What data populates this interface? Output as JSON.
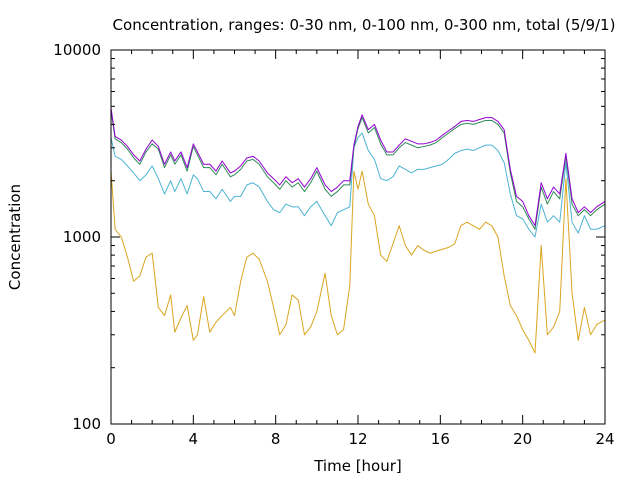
{
  "chart_data": {
    "type": "line",
    "title": "Concentration, ranges: 0-30 nm, 0-100 nm, 0-300 nm, total (5/9/1)",
    "xlabel": "Time [hour]",
    "ylabel": "Concentration",
    "xlim": [
      0,
      24
    ],
    "ylim": [
      100,
      10000
    ],
    "y_scale": "log",
    "x_ticks": [
      "0",
      "4",
      "8",
      "12",
      "16",
      "20",
      "24"
    ],
    "y_ticks": [
      "100",
      "1000",
      "10000"
    ],
    "grid": false,
    "legend": "none",
    "series": [
      {
        "color": "#daa520",
        "x": [
          0,
          0.2,
          0.5,
          0.8,
          1.1,
          1.4,
          1.7,
          2.0,
          2.3,
          2.6,
          2.9,
          3.1,
          3.4,
          3.7,
          4.0,
          4.2,
          4.5,
          4.8,
          5.1,
          5.4,
          5.8,
          6.0,
          6.3,
          6.6,
          6.9,
          7.2,
          7.6,
          7.9,
          8.2,
          8.5,
          8.8,
          9.1,
          9.4,
          9.7,
          10.0,
          10.4,
          10.7,
          11.0,
          11.3,
          11.6,
          11.8,
          12.0,
          12.2,
          12.5,
          12.8,
          13.1,
          13.4,
          13.7,
          14.0,
          14.3,
          14.6,
          14.9,
          15.2,
          15.5,
          15.8,
          16.1,
          16.4,
          16.7,
          17.0,
          17.3,
          17.6,
          17.9,
          18.2,
          18.5,
          18.8,
          19.1,
          19.4,
          19.7,
          20.0,
          20.3,
          20.6,
          20.9,
          21.2,
          21.5,
          21.8,
          22.1,
          22.4,
          22.7,
          23.0,
          23.3,
          23.6,
          24.0
        ],
        "y": [
          2250,
          1100,
          1000,
          780,
          580,
          620,
          780,
          820,
          420,
          380,
          490,
          310,
          370,
          430,
          280,
          300,
          480,
          310,
          350,
          380,
          420,
          380,
          580,
          780,
          820,
          760,
          580,
          420,
          300,
          340,
          490,
          460,
          300,
          330,
          400,
          640,
          380,
          300,
          320,
          550,
          2250,
          1800,
          2250,
          1500,
          1300,
          800,
          740,
          920,
          1150,
          900,
          800,
          900,
          850,
          820,
          840,
          860,
          880,
          920,
          1150,
          1200,
          1150,
          1100,
          1200,
          1150,
          1000,
          620,
          430,
          380,
          320,
          280,
          240,
          900,
          300,
          330,
          400,
          2050,
          500,
          280,
          420,
          300,
          340,
          360
        ]
      },
      {
        "color": "#4eb3d3",
        "x": [
          0,
          0.2,
          0.5,
          0.8,
          1.1,
          1.4,
          1.7,
          2.0,
          2.3,
          2.6,
          2.9,
          3.1,
          3.4,
          3.7,
          4.0,
          4.2,
          4.5,
          4.8,
          5.1,
          5.4,
          5.8,
          6.0,
          6.3,
          6.6,
          6.9,
          7.2,
          7.6,
          7.9,
          8.2,
          8.5,
          8.8,
          9.1,
          9.4,
          9.7,
          10.0,
          10.4,
          10.7,
          11.0,
          11.3,
          11.6,
          11.8,
          12.0,
          12.2,
          12.5,
          12.8,
          13.1,
          13.4,
          13.7,
          14.0,
          14.3,
          14.6,
          14.9,
          15.2,
          15.5,
          15.8,
          16.1,
          16.4,
          16.7,
          17.0,
          17.3,
          17.6,
          17.9,
          18.2,
          18.5,
          18.8,
          19.1,
          19.4,
          19.7,
          20.0,
          20.3,
          20.6,
          20.9,
          21.2,
          21.5,
          21.8,
          22.1,
          22.4,
          22.7,
          23.0,
          23.3,
          23.6,
          24.0
        ],
        "y": [
          3400,
          2700,
          2600,
          2400,
          2200,
          2000,
          2150,
          2400,
          2050,
          1700,
          2000,
          1750,
          2050,
          1700,
          2150,
          2050,
          1750,
          1750,
          1600,
          1800,
          1550,
          1650,
          1650,
          1900,
          1950,
          1850,
          1550,
          1400,
          1350,
          1500,
          1450,
          1450,
          1300,
          1450,
          1550,
          1300,
          1150,
          1350,
          1400,
          1450,
          3000,
          3400,
          3600,
          2900,
          2600,
          2050,
          2000,
          2100,
          2400,
          2300,
          2200,
          2300,
          2300,
          2350,
          2400,
          2450,
          2600,
          2800,
          2900,
          2950,
          2900,
          3000,
          3100,
          3100,
          2900,
          2500,
          1700,
          1300,
          1250,
          1100,
          1000,
          1500,
          1200,
          1300,
          1200,
          2500,
          1200,
          1050,
          1300,
          1100,
          1100,
          1150
        ]
      },
      {
        "color": "#2e8b57",
        "x": [
          0,
          0.2,
          0.5,
          0.8,
          1.1,
          1.4,
          1.7,
          2.0,
          2.3,
          2.6,
          2.9,
          3.1,
          3.4,
          3.7,
          4.0,
          4.2,
          4.5,
          4.8,
          5.1,
          5.4,
          5.8,
          6.0,
          6.3,
          6.6,
          6.9,
          7.2,
          7.6,
          7.9,
          8.2,
          8.5,
          8.8,
          9.1,
          9.4,
          9.7,
          10.0,
          10.4,
          10.7,
          11.0,
          11.3,
          11.6,
          11.8,
          12.0,
          12.2,
          12.5,
          12.8,
          13.1,
          13.4,
          13.7,
          14.0,
          14.3,
          14.6,
          14.9,
          15.2,
          15.5,
          15.8,
          16.1,
          16.4,
          16.7,
          17.0,
          17.3,
          17.6,
          17.9,
          18.2,
          18.5,
          18.8,
          19.1,
          19.4,
          19.7,
          20.0,
          20.3,
          20.6,
          20.9,
          21.2,
          21.5,
          21.8,
          22.1,
          22.4,
          22.7,
          23.0,
          23.3,
          23.6,
          24.0
        ],
        "y": [
          4750,
          3350,
          3200,
          2950,
          2650,
          2450,
          2850,
          3150,
          2950,
          2350,
          2750,
          2450,
          2750,
          2250,
          3050,
          2750,
          2350,
          2350,
          2150,
          2450,
          2100,
          2150,
          2300,
          2550,
          2600,
          2450,
          2100,
          1950,
          1800,
          2000,
          1850,
          1950,
          1750,
          1950,
          2250,
          1800,
          1650,
          1750,
          1900,
          1900,
          3000,
          3800,
          4350,
          3600,
          3850,
          3150,
          2750,
          2750,
          3000,
          3200,
          3100,
          3000,
          3050,
          3100,
          3200,
          3400,
          3600,
          3800,
          4000,
          4050,
          4000,
          4100,
          4200,
          4200,
          4000,
          3600,
          2200,
          1550,
          1450,
          1250,
          1100,
          1850,
          1500,
          1750,
          1600,
          2700,
          1500,
          1300,
          1400,
          1300,
          1400,
          1500
        ]
      },
      {
        "color": "#9400d3",
        "x": [
          0,
          0.2,
          0.5,
          0.8,
          1.1,
          1.4,
          1.7,
          2.0,
          2.3,
          2.6,
          2.9,
          3.1,
          3.4,
          3.7,
          4.0,
          4.2,
          4.5,
          4.8,
          5.1,
          5.4,
          5.8,
          6.0,
          6.3,
          6.6,
          6.9,
          7.2,
          7.6,
          7.9,
          8.2,
          8.5,
          8.8,
          9.1,
          9.4,
          9.7,
          10.0,
          10.4,
          10.7,
          11.0,
          11.3,
          11.6,
          11.8,
          12.0,
          12.2,
          12.5,
          12.8,
          13.1,
          13.4,
          13.7,
          14.0,
          14.3,
          14.6,
          14.9,
          15.2,
          15.5,
          15.8,
          16.1,
          16.4,
          16.7,
          17.0,
          17.3,
          17.6,
          17.9,
          18.2,
          18.5,
          18.8,
          19.1,
          19.4,
          19.7,
          20.0,
          20.3,
          20.6,
          20.9,
          21.2,
          21.5,
          21.8,
          22.1,
          22.4,
          22.7,
          23.0,
          23.3,
          23.6,
          24.0
        ],
        "y": [
          4900,
          3450,
          3300,
          3050,
          2750,
          2550,
          2950,
          3300,
          3050,
          2450,
          2850,
          2550,
          2850,
          2350,
          3150,
          2850,
          2450,
          2450,
          2250,
          2550,
          2200,
          2250,
          2400,
          2650,
          2700,
          2550,
          2200,
          2050,
          1900,
          2100,
          1950,
          2050,
          1850,
          2050,
          2350,
          1900,
          1750,
          1850,
          2000,
          2000,
          3100,
          3900,
          4500,
          3750,
          4000,
          3300,
          2850,
          2850,
          3100,
          3350,
          3250,
          3150,
          3150,
          3200,
          3300,
          3500,
          3700,
          3900,
          4150,
          4200,
          4150,
          4250,
          4350,
          4350,
          4150,
          3750,
          2300,
          1650,
          1550,
          1300,
          1150,
          1950,
          1600,
          1850,
          1700,
          2800,
          1600,
          1350,
          1450,
          1350,
          1450,
          1550
        ]
      }
    ]
  }
}
